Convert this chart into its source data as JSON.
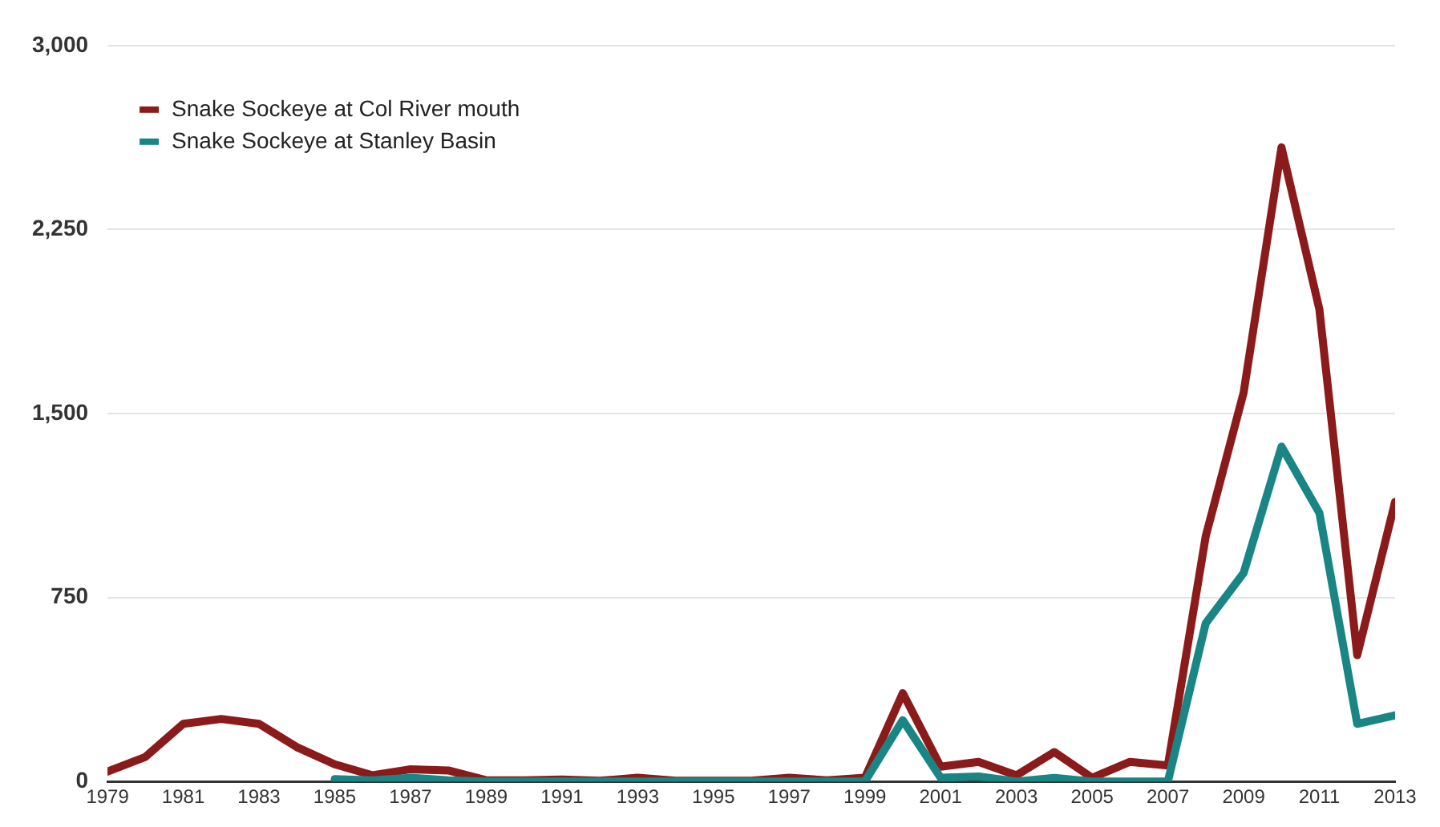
{
  "chart_data": {
    "type": "line",
    "x": [
      1979,
      1980,
      1981,
      1982,
      1983,
      1984,
      1985,
      1986,
      1987,
      1988,
      1989,
      1990,
      1991,
      1992,
      1993,
      1994,
      1995,
      1996,
      1997,
      1998,
      1999,
      2000,
      2001,
      2002,
      2003,
      2004,
      2005,
      2006,
      2007,
      2008,
      2009,
      2010,
      2011,
      2012,
      2013
    ],
    "series": [
      {
        "name": "Snake Sockeye at Col River mouth",
        "color": "#8b1a1a",
        "values": [
          40,
          100,
          235,
          255,
          235,
          140,
          70,
          25,
          50,
          45,
          5,
          5,
          8,
          3,
          15,
          3,
          3,
          3,
          15,
          5,
          15,
          360,
          60,
          80,
          25,
          120,
          15,
          80,
          65,
          1000,
          1585,
          2585,
          1925,
          515,
          1140
        ]
      },
      {
        "name": "Snake Sockeye at Stanley Basin",
        "color": "#1a8585",
        "values": [
          null,
          null,
          null,
          null,
          null,
          null,
          10,
          5,
          15,
          5,
          0,
          0,
          0,
          0,
          0,
          0,
          0,
          0,
          0,
          0,
          0,
          250,
          15,
          20,
          0,
          15,
          0,
          0,
          0,
          645,
          850,
          1365,
          1095,
          235,
          270
        ]
      }
    ],
    "xlim": [
      1979,
      2013
    ],
    "xticks": [
      1979,
      1981,
      1983,
      1985,
      1987,
      1989,
      1991,
      1993,
      1995,
      1997,
      1999,
      2001,
      2003,
      2005,
      2007,
      2009,
      2011,
      2013
    ],
    "ylim": [
      0,
      3000
    ],
    "yticks": [
      0,
      {
        "value": 750,
        "label": "750"
      },
      {
        "value": 1500,
        "label": "1,500"
      },
      {
        "value": 2250,
        "label": "2,250"
      },
      {
        "value": 3000,
        "label": "3,000"
      }
    ],
    "grid": "y",
    "legend": "top left",
    "marker": "none",
    "line_style": "solid"
  }
}
